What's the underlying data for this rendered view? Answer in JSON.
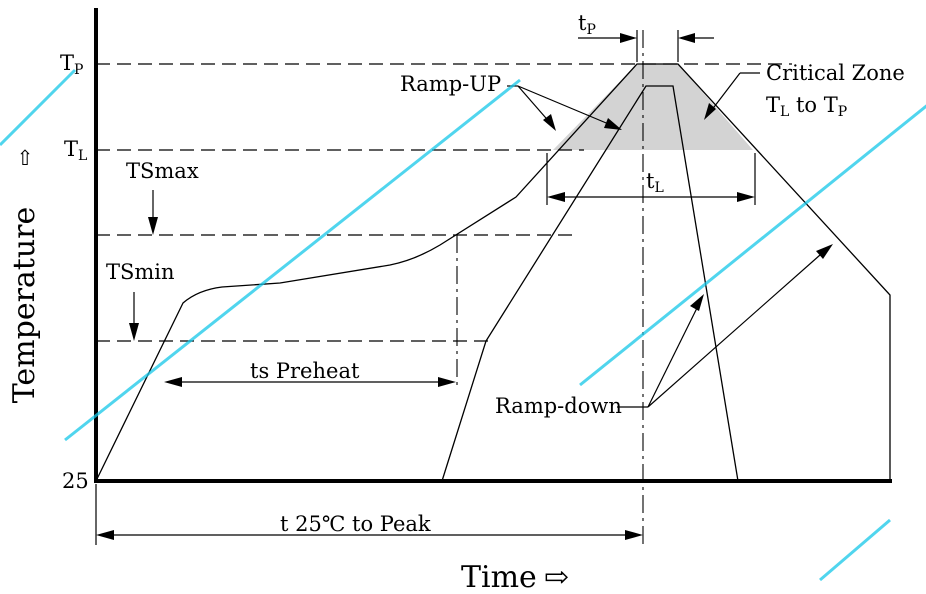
{
  "axes": {
    "y_label": "Temperature",
    "y_arrow": "⇧",
    "x_label": "Time",
    "x_arrow": "⇨",
    "origin_label": "25"
  },
  "temperature_levels": {
    "tp": {
      "main": "T",
      "sub": "P"
    },
    "tl": {
      "main": "T",
      "sub": "L"
    },
    "tsmax": "TSmax",
    "tsmin": "TSmin"
  },
  "annotations": {
    "tp_duration": {
      "main": "t",
      "sub": "P"
    },
    "tl_duration": {
      "main": "t",
      "sub": "L"
    },
    "preheat": "ts Preheat",
    "t25_to_peak": "t 25℃ to Peak",
    "ramp_up": "Ramp-UP",
    "ramp_down": "Ramp-down",
    "critical_zone_title": "Critical Zone",
    "critical_zone_range": {
      "tl": "T",
      "tl_sub": "L",
      "to": " to ",
      "tp": "T",
      "tp_sub": "P"
    }
  },
  "colors": {
    "line": "#000000",
    "critical_zone_fill": "#d3d3d3",
    "watermark": "#16c7e8"
  }
}
